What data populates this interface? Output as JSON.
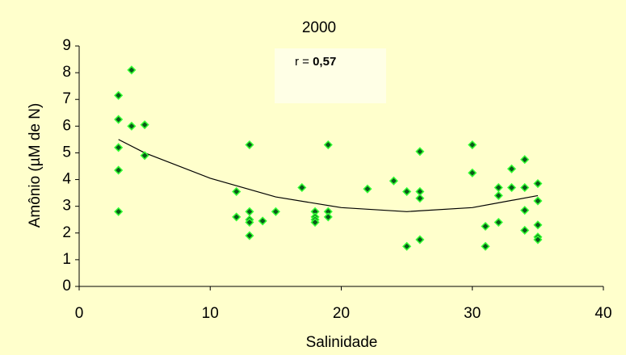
{
  "chart_data": {
    "type": "scatter",
    "title": "2000",
    "xlabel": "Salinidade",
    "ylabel": "Amônio (µM de N)",
    "annotation": {
      "prefix": "r = ",
      "value": "0,57"
    },
    "xlim": [
      0,
      40
    ],
    "xticks": [
      0,
      10,
      20,
      30,
      40
    ],
    "ylim": [
      0,
      9
    ],
    "yticks": [
      0,
      1,
      2,
      3,
      4,
      5,
      6,
      7,
      8,
      9
    ],
    "marker_color": "#0b5a1a",
    "marker_edge": "#33ff33",
    "x": [
      3,
      3,
      3,
      3,
      3,
      4,
      4,
      5,
      5,
      12,
      12,
      13,
      13,
      13,
      13,
      13,
      14,
      15,
      17,
      18,
      18,
      18,
      18,
      19,
      19,
      19,
      22,
      24,
      25,
      25,
      26,
      26,
      26,
      26,
      30,
      30,
      31,
      31,
      32,
      32,
      32,
      33,
      33,
      34,
      34,
      34,
      34,
      35,
      35,
      35,
      35,
      35
    ],
    "values": [
      7.15,
      6.25,
      5.2,
      4.35,
      2.8,
      8.1,
      6.0,
      6.05,
      4.9,
      3.55,
      2.6,
      5.3,
      2.8,
      2.5,
      2.4,
      1.9,
      2.45,
      2.8,
      3.7,
      2.8,
      2.6,
      2.5,
      2.4,
      5.3,
      2.8,
      2.6,
      3.65,
      3.95,
      3.55,
      1.5,
      3.55,
      3.3,
      5.05,
      1.75,
      5.3,
      4.25,
      2.25,
      1.5,
      3.7,
      3.4,
      2.4,
      4.4,
      3.7,
      4.75,
      3.7,
      2.85,
      2.1,
      3.85,
      3.2,
      2.3,
      1.85,
      1.75
    ],
    "trend": {
      "color": "#000000",
      "x": [
        3,
        5,
        10,
        15,
        20,
        25,
        30,
        35
      ],
      "values": [
        5.5,
        5.0,
        4.05,
        3.35,
        2.95,
        2.8,
        2.95,
        3.4
      ]
    }
  }
}
